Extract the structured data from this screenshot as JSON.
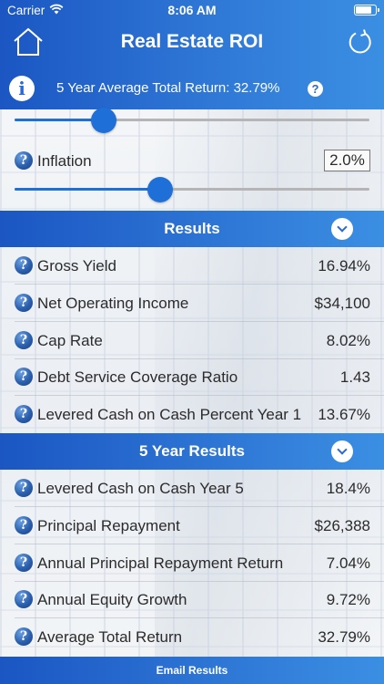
{
  "status_bar": {
    "carrier": "Carrier",
    "time": "8:06 AM"
  },
  "header": {
    "title": "Real Estate ROI",
    "summary": "5 Year Average Total Return: 32.79%",
    "info_glyph": "i",
    "help_glyph": "?"
  },
  "controls": {
    "top_slider_value": 0.25,
    "inflation": {
      "label": "Inflation",
      "value": "2.0%",
      "slider_value": 0.41
    }
  },
  "results": {
    "title": "Results",
    "rows": [
      {
        "label": "Gross Yield",
        "value": "16.94%"
      },
      {
        "label": "Net Operating Income",
        "value": "$34,100"
      },
      {
        "label": "Cap Rate",
        "value": "8.02%"
      },
      {
        "label": "Debt Service Coverage Ratio",
        "value": "1.43"
      },
      {
        "label": "Levered Cash on Cash Percent Year 1",
        "value": "13.67%"
      }
    ]
  },
  "five_year_results": {
    "title": "5 Year Results",
    "rows": [
      {
        "label": "Levered Cash on Cash Year 5",
        "value": "18.4%"
      },
      {
        "label": "Principal Repayment",
        "value": "$26,388"
      },
      {
        "label": "Annual Principal Repayment Return",
        "value": "7.04%"
      },
      {
        "label": "Annual Equity Growth",
        "value": "9.72%"
      },
      {
        "label": "Average Total Return",
        "value": "32.79%"
      }
    ]
  },
  "footer": {
    "email_label": "Email Results"
  },
  "colors": {
    "accent": "#1f6fd9",
    "header_start": "#1b56c3",
    "header_end": "#3b8fe3"
  }
}
